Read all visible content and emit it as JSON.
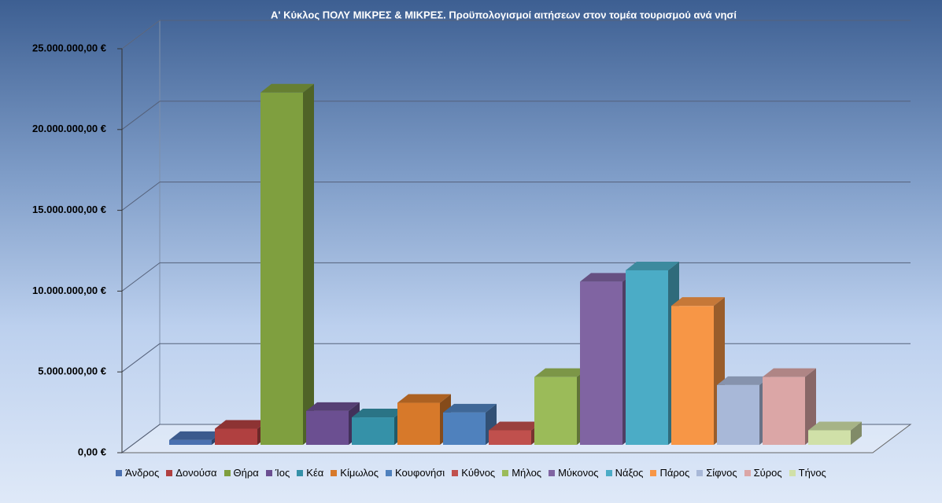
{
  "chart_data": {
    "type": "bar3d",
    "title": "Α' Κύκλος ΠΟΛΥ ΜΙΚΡΕΣ & ΜΙΚΡΕΣ. Προϋπολογισμοί αιτήσεων στον τομέα τουρισμού ανά νησί",
    "categories": [
      "Άνδρος",
      "Δονούσα",
      "Θήρα",
      "Ίος",
      "Κέα",
      "Κίμωλος",
      "Κουφονήσι",
      "Κύθνος",
      "Μήλος",
      "Μύκονος",
      "Νάξος",
      "Πάρος",
      "Σίφνος",
      "Σύρος",
      "Τήνος"
    ],
    "values": [
      300000,
      1000000,
      21800000,
      2100000,
      1700000,
      2600000,
      2000000,
      900000,
      4200000,
      10100000,
      10800000,
      8600000,
      3700000,
      4200000,
      900000
    ],
    "colors": [
      "#4a70b0",
      "#b04040",
      "#7f9f3f",
      "#6b4f91",
      "#3591a8",
      "#d7792a",
      "#4f81bd",
      "#c0504d",
      "#9bbb59",
      "#8064a2",
      "#4bacc6",
      "#f79646",
      "#a8b8d8",
      "#dba6a6",
      "#d0e0a8"
    ],
    "ylim": [
      0,
      25000000
    ],
    "yticks": [
      {
        "value": 0,
        "label": "0,00 €"
      },
      {
        "value": 5000000,
        "label": "5.000.000,00 €"
      },
      {
        "value": 10000000,
        "label": "10.000.000,00 €"
      },
      {
        "value": 15000000,
        "label": "15.000.000,00 €"
      },
      {
        "value": 20000000,
        "label": "20.000.000,00 €"
      },
      {
        "value": 25000000,
        "label": "25.000.000,00 €"
      }
    ],
    "grid": true
  }
}
